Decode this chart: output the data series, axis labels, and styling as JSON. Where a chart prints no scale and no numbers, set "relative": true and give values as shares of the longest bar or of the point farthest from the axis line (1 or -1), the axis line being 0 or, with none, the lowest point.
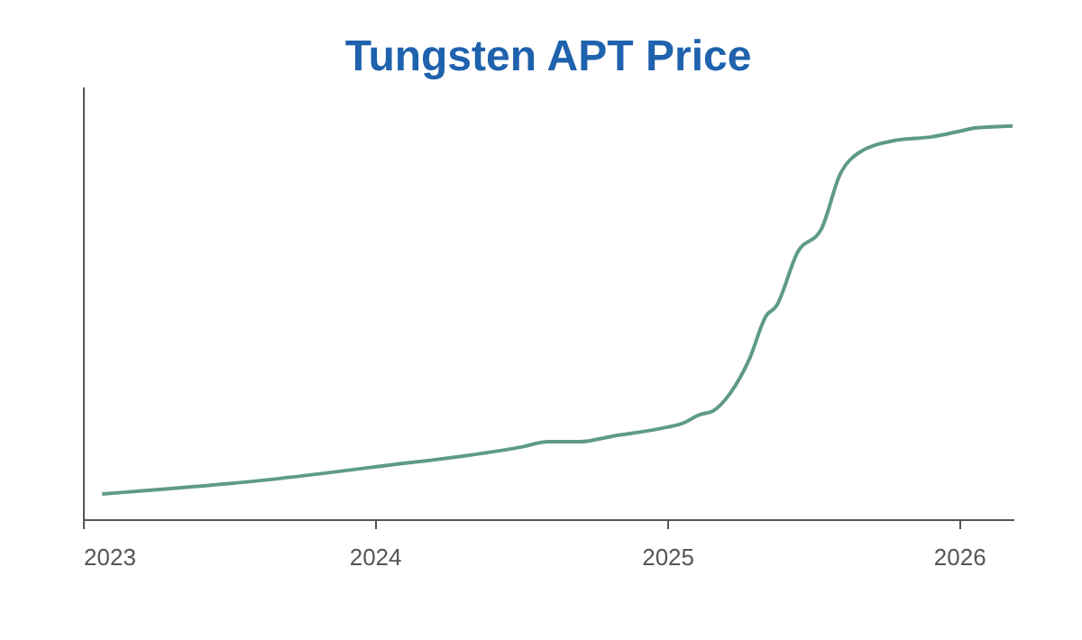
{
  "chart_data": {
    "type": "line",
    "title": "Tungsten APT Price",
    "relative": true,
    "x": [
      "2023-01-25",
      "2023-08-19",
      "2024-01-01",
      "2024-07-01",
      "2024-08-05",
      "2024-09-13",
      "2024-10-24",
      "2025-01-01",
      "2025-01-19",
      "2025-02-11",
      "2025-02-27",
      "2025-03-21",
      "2025-04-13",
      "2025-05-05",
      "2025-05-17",
      "2025-06-13",
      "2025-07-13",
      "2025-08-05",
      "2025-08-28",
      "2025-10-13",
      "2025-11-27",
      "2026-01-01",
      "2026-01-23",
      "2026-03-09"
    ],
    "series": [
      {
        "color": "#5e9a8a",
        "values": [
          0.064,
          0.1,
          0.133,
          0.183,
          0.197,
          0.197,
          0.211,
          0.234,
          0.243,
          0.266,
          0.275,
          0.321,
          0.404,
          0.518,
          0.541,
          0.679,
          0.739,
          0.876,
          0.931,
          0.963,
          0.972,
          0.986,
          0.995,
          1.0
        ]
      }
    ],
    "xlim": [
      "2023-01-01",
      "2026-03-10"
    ],
    "xticks": [
      "2023",
      "2024",
      "2025",
      "2026"
    ],
    "grid": false,
    "legend": false,
    "marker": "none",
    "line_style": "solid"
  }
}
